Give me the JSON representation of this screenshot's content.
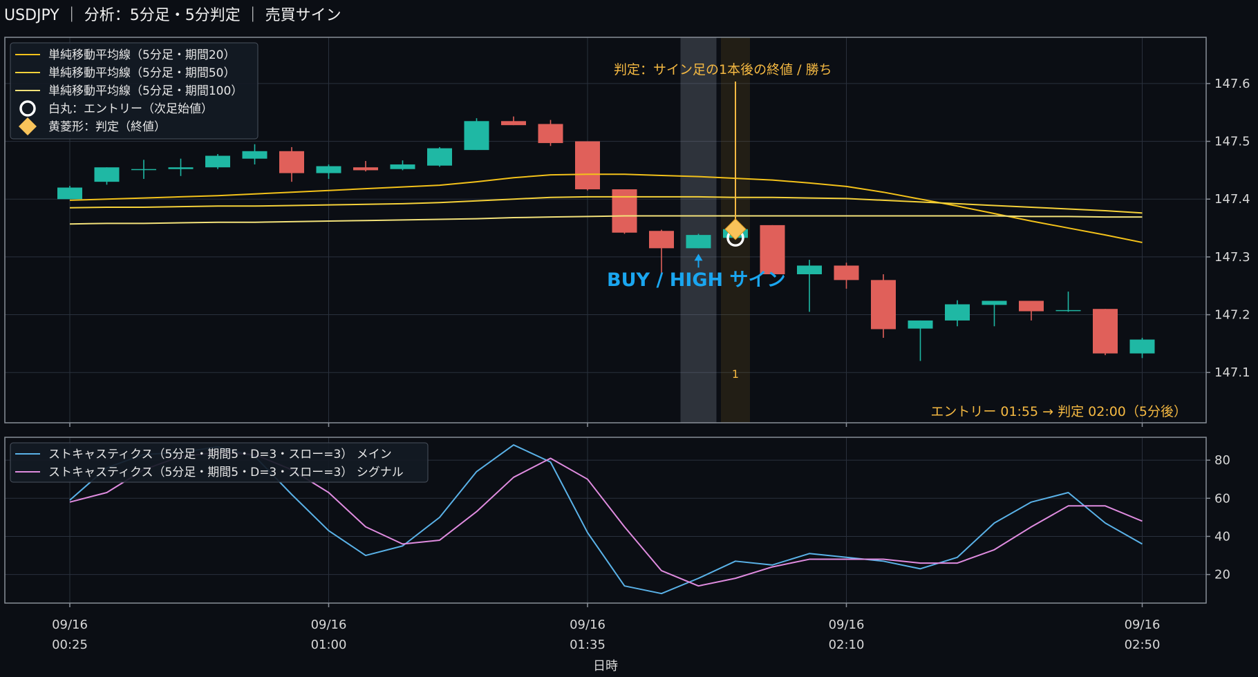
{
  "title": "USDJPY ｜ 分析：5分足・5分判定 ｜ 売買サイン",
  "colors": {
    "up": "#1fb8a4",
    "down": "#e0605a",
    "sma20": "#f4c21a",
    "sma50": "#f6d23a",
    "sma100": "#f3e27a",
    "stoch_main": "#5ab2e8",
    "stoch_signal": "#e08ce0",
    "judge": "#f5b942",
    "signal_text": "#1aa6f0"
  },
  "chart_data": [
    {
      "type": "candlestick",
      "ylim": [
        147.013,
        147.68
      ],
      "yticks": [
        147.1,
        147.2,
        147.3,
        147.4,
        147.5,
        147.6
      ],
      "xticks": [
        {
          "index": 0,
          "date": "09/16",
          "time": "00:25"
        },
        {
          "index": 7,
          "date": "09/16",
          "time": "01:00"
        },
        {
          "index": 14,
          "date": "09/16",
          "time": "01:35"
        },
        {
          "index": 21,
          "date": "09/16",
          "time": "02:10"
        },
        {
          "index": 29,
          "date": "09/16",
          "time": "02:50"
        }
      ],
      "candles": [
        {
          "o": 147.4,
          "h": 147.423,
          "l": 147.4,
          "c": 147.42
        },
        {
          "o": 147.43,
          "h": 147.455,
          "l": 147.425,
          "c": 147.455
        },
        {
          "o": 147.452,
          "h": 147.468,
          "l": 147.435,
          "c": 147.452
        },
        {
          "o": 147.452,
          "h": 147.47,
          "l": 147.44,
          "c": 147.455
        },
        {
          "o": 147.455,
          "h": 147.478,
          "l": 147.452,
          "c": 147.475
        },
        {
          "o": 147.47,
          "h": 147.495,
          "l": 147.46,
          "c": 147.483
        },
        {
          "o": 147.483,
          "h": 147.49,
          "l": 147.43,
          "c": 147.445
        },
        {
          "o": 147.445,
          "h": 147.46,
          "l": 147.435,
          "c": 147.457
        },
        {
          "o": 147.455,
          "h": 147.466,
          "l": 147.448,
          "c": 147.45
        },
        {
          "o": 147.452,
          "h": 147.467,
          "l": 147.45,
          "c": 147.46
        },
        {
          "o": 147.458,
          "h": 147.49,
          "l": 147.456,
          "c": 147.488
        },
        {
          "o": 147.485,
          "h": 147.54,
          "l": 147.485,
          "c": 147.535
        },
        {
          "o": 147.535,
          "h": 147.543,
          "l": 147.528,
          "c": 147.528
        },
        {
          "o": 147.53,
          "h": 147.537,
          "l": 147.492,
          "c": 147.497
        },
        {
          "o": 147.5,
          "h": 147.5,
          "l": 147.415,
          "c": 147.417
        },
        {
          "o": 147.417,
          "h": 147.417,
          "l": 147.34,
          "c": 147.342
        },
        {
          "o": 147.345,
          "h": 147.347,
          "l": 147.27,
          "c": 147.315
        },
        {
          "o": 147.315,
          "h": 147.34,
          "l": 147.315,
          "c": 147.338
        },
        {
          "o": 147.333,
          "h": 147.355,
          "l": 147.332,
          "c": 147.348
        },
        {
          "o": 147.355,
          "h": 147.355,
          "l": 147.27,
          "c": 147.27
        },
        {
          "o": 147.27,
          "h": 147.295,
          "l": 147.205,
          "c": 147.285
        },
        {
          "o": 147.285,
          "h": 147.29,
          "l": 147.245,
          "c": 147.26
        },
        {
          "o": 147.26,
          "h": 147.27,
          "l": 147.16,
          "c": 147.175
        },
        {
          "o": 147.176,
          "h": 147.19,
          "l": 147.12,
          "c": 147.19
        },
        {
          "o": 147.19,
          "h": 147.225,
          "l": 147.18,
          "c": 147.218
        },
        {
          "o": 147.217,
          "h": 147.224,
          "l": 147.18,
          "c": 147.224
        },
        {
          "o": 147.224,
          "h": 147.224,
          "l": 147.19,
          "c": 147.206
        },
        {
          "o": 147.207,
          "h": 147.24,
          "l": 147.205,
          "c": 147.208
        },
        {
          "o": 147.21,
          "h": 147.21,
          "l": 147.13,
          "c": 147.133
        },
        {
          "o": 147.133,
          "h": 147.16,
          "l": 147.125,
          "c": 147.157
        }
      ],
      "series": [
        {
          "name": "単純移動平均線（5分足・期間20）",
          "color_key": "sma20",
          "values": [
            147.398,
            147.4,
            147.402,
            147.404,
            147.406,
            147.409,
            147.412,
            147.415,
            147.418,
            147.421,
            147.424,
            147.43,
            147.437,
            147.442,
            147.443,
            147.443,
            147.441,
            147.439,
            147.436,
            147.433,
            147.428,
            147.422,
            147.412,
            147.4,
            147.388,
            147.375,
            147.362,
            147.35,
            147.338,
            147.325
          ]
        },
        {
          "name": "単純移動平均線（5分足・期間50）",
          "color_key": "sma50",
          "values": [
            147.385,
            147.386,
            147.386,
            147.387,
            147.388,
            147.388,
            147.389,
            147.39,
            147.391,
            147.392,
            147.394,
            147.397,
            147.4,
            147.403,
            147.404,
            147.404,
            147.404,
            147.404,
            147.403,
            147.403,
            147.402,
            147.401,
            147.398,
            147.395,
            147.392,
            147.389,
            147.386,
            147.383,
            147.38,
            147.376
          ]
        },
        {
          "name": "単純移動平均線（5分足・期間100）",
          "color_key": "sma100",
          "values": [
            147.357,
            147.358,
            147.358,
            147.359,
            147.36,
            147.36,
            147.361,
            147.362,
            147.363,
            147.364,
            147.365,
            147.366,
            147.368,
            147.369,
            147.37,
            147.371,
            147.371,
            147.371,
            147.371,
            147.371,
            147.371,
            147.371,
            147.371,
            147.371,
            147.371,
            147.371,
            147.37,
            147.37,
            147.369,
            147.369
          ]
        }
      ],
      "legend": [
        {
          "kind": "line",
          "label": "単純移動平均線（5分足・期間20）",
          "color_key": "sma20"
        },
        {
          "kind": "line",
          "label": "単純移動平均線（5分足・期間50）",
          "color_key": "sma50"
        },
        {
          "kind": "line",
          "label": "単純移動平均線（5分足・期間100）",
          "color_key": "sma100"
        },
        {
          "kind": "circle",
          "label": "白丸：エントリー（次足始値）"
        },
        {
          "kind": "diamond",
          "label": "黄菱形：判定（終値）"
        }
      ],
      "signal": {
        "index": 17,
        "label": "BUY / HIGH サイン",
        "entry_index": 18,
        "entry_price": 147.333,
        "judge_index": 18,
        "judge_price": 147.348,
        "judge_label": "判定：サイン足の1本後の終値 / 勝ち",
        "count_label": "1",
        "summary": "エントリー 01:55 → 判定 02:00（5分後）"
      }
    },
    {
      "type": "line",
      "ylim": [
        5,
        92
      ],
      "yticks": [
        20,
        40,
        60,
        80
      ],
      "xlabel": "日時",
      "series": [
        {
          "name": "ストキャスティクス（5分足・期間5・D=3・スロー=3） メイン",
          "color_key": "stoch_main",
          "values": [
            59,
            76,
            83,
            84,
            87,
            82,
            62,
            43,
            30,
            35,
            50,
            74,
            88,
            79,
            42,
            14,
            10,
            18,
            27,
            25,
            31,
            29,
            27,
            23,
            29,
            47,
            58,
            63,
            47,
            36
          ]
        },
        {
          "name": "ストキャスティクス（5分足・期間5・D=3・スロー=3） シグナル",
          "color_key": "stoch_signal",
          "values": [
            58,
            63,
            75,
            82,
            84,
            83,
            75,
            63,
            45,
            36,
            38,
            53,
            71,
            81,
            70,
            45,
            22,
            14,
            18,
            24,
            28,
            28,
            28,
            26,
            26,
            33,
            45,
            56,
            56,
            48
          ]
        }
      ]
    }
  ]
}
